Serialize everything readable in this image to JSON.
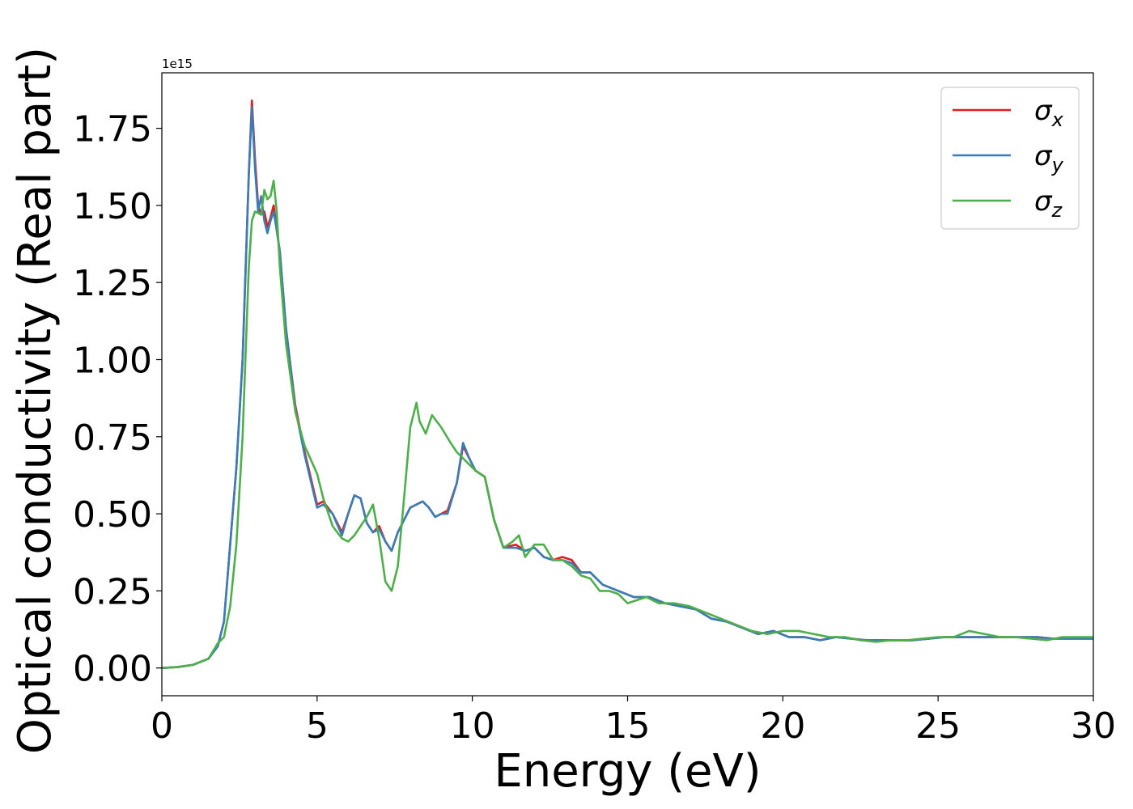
{
  "chart_data": {
    "type": "line",
    "title": "",
    "xlabel": "Energy (eV)",
    "ylabel": "Optical conductivity (Real part)",
    "y_offset_label": "1e15",
    "xlim": [
      0,
      30
    ],
    "ylim": [
      -0.09,
      1.93
    ],
    "x_ticks": [
      "0",
      "5",
      "10",
      "15",
      "20",
      "25",
      "30"
    ],
    "x_tick_values": [
      0,
      5,
      10,
      15,
      20,
      25,
      30
    ],
    "y_ticks": [
      "0.00",
      "0.25",
      "0.50",
      "0.75",
      "1.00",
      "1.25",
      "1.50",
      "1.75"
    ],
    "y_tick_values": [
      0,
      0.25,
      0.5,
      0.75,
      1.0,
      1.25,
      1.5,
      1.75
    ],
    "grid": false,
    "legend_position": "top-right",
    "series": [
      {
        "name": "σx",
        "legend_symbol": "σ",
        "legend_subscript": "x",
        "color": "#e41a1c",
        "x": [
          0,
          0.5,
          1.0,
          1.5,
          1.8,
          2.0,
          2.2,
          2.4,
          2.6,
          2.8,
          2.9,
          3.0,
          3.1,
          3.2,
          3.3,
          3.4,
          3.5,
          3.6,
          3.7,
          3.8,
          4.0,
          4.3,
          4.6,
          5.0,
          5.2,
          5.5,
          5.8,
          6.0,
          6.2,
          6.4,
          6.6,
          6.8,
          7.0,
          7.2,
          7.4,
          7.6,
          8.0,
          8.4,
          8.6,
          8.8,
          9.0,
          9.2,
          9.5,
          9.7,
          9.9,
          10.1,
          10.4,
          10.7,
          11.0,
          11.4,
          11.7,
          12.0,
          12.3,
          12.6,
          12.9,
          13.2,
          13.5,
          13.8,
          14.2,
          14.7,
          15.2,
          15.7,
          16.2,
          16.7,
          17.2,
          17.7,
          18.2,
          18.7,
          19.2,
          19.7,
          20.2,
          20.7,
          21.2,
          21.7,
          22.2,
          22.7,
          23.2,
          23.7,
          24.2,
          24.7,
          25.2,
          25.7,
          26.2,
          26.7,
          27.2,
          27.7,
          28.2,
          28.7,
          29.2,
          29.7,
          30.0
        ],
        "y": [
          0.0,
          0.003,
          0.01,
          0.03,
          0.07,
          0.15,
          0.4,
          0.65,
          1.0,
          1.6,
          1.84,
          1.65,
          1.5,
          1.47,
          1.48,
          1.43,
          1.46,
          1.5,
          1.42,
          1.35,
          1.1,
          0.85,
          0.7,
          0.53,
          0.54,
          0.5,
          0.44,
          0.5,
          0.56,
          0.55,
          0.47,
          0.44,
          0.46,
          0.41,
          0.38,
          0.44,
          0.52,
          0.54,
          0.52,
          0.49,
          0.5,
          0.51,
          0.6,
          0.72,
          0.68,
          0.64,
          0.62,
          0.48,
          0.39,
          0.4,
          0.38,
          0.39,
          0.36,
          0.35,
          0.36,
          0.35,
          0.31,
          0.31,
          0.27,
          0.25,
          0.23,
          0.23,
          0.21,
          0.2,
          0.19,
          0.16,
          0.15,
          0.13,
          0.11,
          0.12,
          0.1,
          0.1,
          0.09,
          0.1,
          0.095,
          0.09,
          0.09,
          0.09,
          0.09,
          0.095,
          0.1,
          0.1,
          0.1,
          0.1,
          0.1,
          0.1,
          0.1,
          0.095,
          0.095,
          0.095,
          0.095
        ]
      },
      {
        "name": "σy",
        "legend_symbol": "σ",
        "legend_subscript": "y",
        "color": "#377eb8",
        "x": [
          0,
          0.5,
          1.0,
          1.5,
          1.8,
          2.0,
          2.2,
          2.4,
          2.6,
          2.8,
          2.9,
          3.0,
          3.1,
          3.2,
          3.3,
          3.4,
          3.5,
          3.6,
          3.7,
          3.8,
          4.0,
          4.3,
          4.6,
          5.0,
          5.2,
          5.5,
          5.8,
          6.0,
          6.2,
          6.4,
          6.6,
          6.8,
          7.0,
          7.2,
          7.4,
          7.6,
          8.0,
          8.4,
          8.6,
          8.8,
          9.0,
          9.2,
          9.5,
          9.7,
          9.9,
          10.1,
          10.4,
          10.7,
          11.0,
          11.4,
          11.7,
          12.0,
          12.3,
          12.6,
          12.9,
          13.2,
          13.5,
          13.8,
          14.2,
          14.7,
          15.2,
          15.7,
          16.2,
          16.7,
          17.2,
          17.7,
          18.2,
          18.7,
          19.2,
          19.7,
          20.2,
          20.7,
          21.2,
          21.7,
          22.2,
          22.7,
          23.2,
          23.7,
          24.2,
          24.7,
          25.2,
          25.7,
          26.2,
          26.7,
          27.2,
          27.7,
          28.2,
          28.7,
          29.2,
          29.7,
          30.0
        ],
        "y": [
          0.0,
          0.003,
          0.01,
          0.03,
          0.07,
          0.15,
          0.4,
          0.65,
          1.0,
          1.6,
          1.82,
          1.62,
          1.48,
          1.53,
          1.45,
          1.41,
          1.45,
          1.48,
          1.42,
          1.35,
          1.1,
          0.84,
          0.69,
          0.52,
          0.53,
          0.5,
          0.43,
          0.5,
          0.56,
          0.55,
          0.47,
          0.44,
          0.45,
          0.41,
          0.38,
          0.44,
          0.52,
          0.54,
          0.52,
          0.49,
          0.5,
          0.5,
          0.6,
          0.73,
          0.68,
          0.64,
          0.62,
          0.48,
          0.39,
          0.39,
          0.38,
          0.39,
          0.36,
          0.35,
          0.35,
          0.34,
          0.31,
          0.31,
          0.27,
          0.25,
          0.23,
          0.23,
          0.21,
          0.2,
          0.19,
          0.16,
          0.15,
          0.13,
          0.11,
          0.12,
          0.1,
          0.1,
          0.09,
          0.1,
          0.095,
          0.09,
          0.09,
          0.09,
          0.09,
          0.095,
          0.1,
          0.1,
          0.1,
          0.1,
          0.1,
          0.1,
          0.1,
          0.095,
          0.095,
          0.095,
          0.095
        ]
      },
      {
        "name": "σz",
        "legend_symbol": "σ",
        "legend_subscript": "z",
        "color": "#4daf4a",
        "x": [
          0,
          0.5,
          1.0,
          1.5,
          1.8,
          1.9,
          2.0,
          2.2,
          2.4,
          2.6,
          2.8,
          2.9,
          3.0,
          3.2,
          3.3,
          3.4,
          3.5,
          3.6,
          3.7,
          3.8,
          4.0,
          4.3,
          4.6,
          5.0,
          5.2,
          5.5,
          5.8,
          6.0,
          6.2,
          6.4,
          6.6,
          6.8,
          7.0,
          7.2,
          7.4,
          7.6,
          7.8,
          8.0,
          8.2,
          8.3,
          8.5,
          8.7,
          9.0,
          9.3,
          9.5,
          9.8,
          10.1,
          10.4,
          10.7,
          11.0,
          11.3,
          11.5,
          11.7,
          12.0,
          12.3,
          12.6,
          12.9,
          13.2,
          13.5,
          13.8,
          14.1,
          14.4,
          14.7,
          15.0,
          15.3,
          15.6,
          16.0,
          16.5,
          17.0,
          17.5,
          18.0,
          18.5,
          19.0,
          19.5,
          20.0,
          20.5,
          21.0,
          21.5,
          22.0,
          22.5,
          23.0,
          23.5,
          24.0,
          24.5,
          25.0,
          25.5,
          26.0,
          26.5,
          27.0,
          27.5,
          28.0,
          28.5,
          29.0,
          29.5,
          30.0
        ],
        "y": [
          0.0,
          0.003,
          0.01,
          0.03,
          0.08,
          0.09,
          0.1,
          0.2,
          0.4,
          0.75,
          1.3,
          1.45,
          1.48,
          1.47,
          1.55,
          1.52,
          1.53,
          1.58,
          1.48,
          1.3,
          1.05,
          0.83,
          0.72,
          0.63,
          0.55,
          0.46,
          0.42,
          0.41,
          0.43,
          0.46,
          0.49,
          0.53,
          0.42,
          0.28,
          0.25,
          0.33,
          0.55,
          0.78,
          0.86,
          0.8,
          0.76,
          0.82,
          0.78,
          0.73,
          0.7,
          0.67,
          0.64,
          0.62,
          0.48,
          0.39,
          0.41,
          0.43,
          0.36,
          0.4,
          0.4,
          0.35,
          0.35,
          0.33,
          0.3,
          0.29,
          0.25,
          0.25,
          0.24,
          0.21,
          0.22,
          0.23,
          0.21,
          0.21,
          0.2,
          0.18,
          0.16,
          0.14,
          0.12,
          0.11,
          0.12,
          0.12,
          0.11,
          0.1,
          0.1,
          0.09,
          0.085,
          0.09,
          0.09,
          0.095,
          0.1,
          0.1,
          0.12,
          0.11,
          0.1,
          0.1,
          0.095,
          0.09,
          0.1,
          0.1,
          0.1
        ]
      }
    ]
  }
}
